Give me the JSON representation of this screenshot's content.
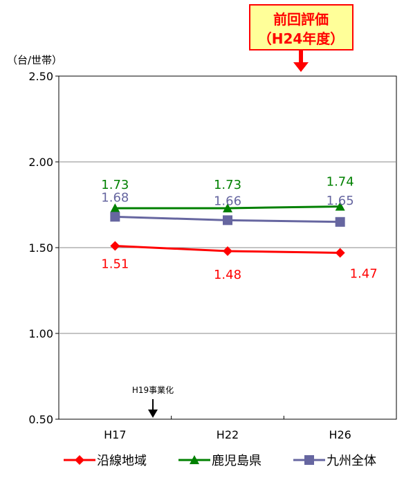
{
  "chart_data": {
    "type": "line",
    "unit_label": "（台/世帯）",
    "categories": [
      "H17",
      "H22",
      "H26"
    ],
    "ylim": [
      0.5,
      2.5
    ],
    "yticks": [
      "0.50",
      "1.00",
      "1.50",
      "2.00",
      "2.50"
    ],
    "grid": true,
    "legend_position": "bottom",
    "series": [
      {
        "name": "沿線地域",
        "values": [
          1.51,
          1.48,
          1.47
        ],
        "labels": [
          "1.51",
          "1.48",
          "1.47"
        ],
        "color": "#ff0000",
        "marker": "diamond"
      },
      {
        "name": "鹿児島県",
        "values": [
          1.73,
          1.73,
          1.74
        ],
        "labels": [
          "1.73",
          "1.73",
          "1.74"
        ],
        "color": "#008000",
        "marker": "triangle"
      },
      {
        "name": "九州全体",
        "values": [
          1.68,
          1.66,
          1.65
        ],
        "labels": [
          "1.68",
          "1.66",
          "1.65"
        ],
        "color": "#6666a0",
        "marker": "square"
      }
    ],
    "annotations": {
      "previous_eval": {
        "line1": "前回評価",
        "line2": "（H24年度）",
        "text_color": "#ff0000",
        "fill": "#ffff99",
        "border": "#ff0000"
      },
      "project_start": {
        "text": "H19事業化"
      }
    }
  }
}
